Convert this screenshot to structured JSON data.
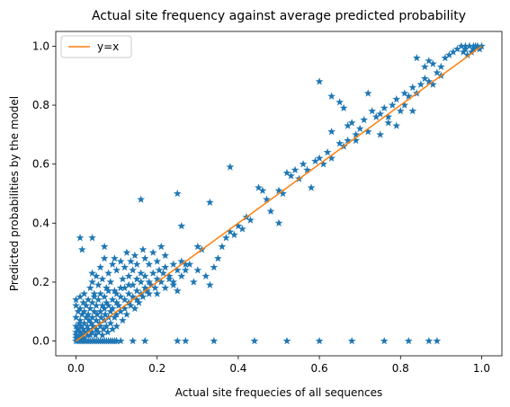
{
  "chart_data": {
    "type": "scatter",
    "title": "Actual site frequency against average predicted probability",
    "xlabel": "Actual site frequecies of all sequences",
    "ylabel": "Predicted probabilities by the model",
    "xlim": [
      -0.05,
      1.05
    ],
    "ylim": [
      -0.05,
      1.05
    ],
    "xticks": [
      0.0,
      0.2,
      0.4,
      0.6,
      0.8,
      1.0
    ],
    "xtick_labels": [
      "0.0",
      "0.2",
      "0.4",
      "0.6",
      "0.8",
      "1.0"
    ],
    "yticks": [
      0.0,
      0.2,
      0.4,
      0.6,
      0.8,
      1.0
    ],
    "ytick_labels": [
      "0.0",
      "0.2",
      "0.4",
      "0.6",
      "0.8",
      "1.0"
    ],
    "grid": false,
    "legend_position": "upper-left",
    "series": [
      {
        "kind": "scatter",
        "marker": "star",
        "color": "#1f77b4",
        "points": [
          [
            0.0,
            0.0
          ],
          [
            0.0,
            0.01
          ],
          [
            0.0,
            0.02
          ],
          [
            0.0,
            0.03
          ],
          [
            0.0,
            0.05
          ],
          [
            0.0,
            0.08
          ],
          [
            0.0,
            0.12
          ],
          [
            0.0,
            0.14
          ],
          [
            0.005,
            0.0
          ],
          [
            0.005,
            0.04
          ],
          [
            0.005,
            0.1
          ],
          [
            0.008,
            0.02
          ],
          [
            0.008,
            0.06
          ],
          [
            0.01,
            0.0
          ],
          [
            0.01,
            0.01
          ],
          [
            0.01,
            0.03
          ],
          [
            0.01,
            0.07
          ],
          [
            0.01,
            0.11
          ],
          [
            0.01,
            0.15
          ],
          [
            0.012,
            0.05
          ],
          [
            0.015,
            0.0
          ],
          [
            0.015,
            0.02
          ],
          [
            0.015,
            0.09
          ],
          [
            0.018,
            0.04
          ],
          [
            0.018,
            0.13
          ],
          [
            0.02,
            0.0
          ],
          [
            0.02,
            0.01
          ],
          [
            0.02,
            0.06
          ],
          [
            0.02,
            0.1
          ],
          [
            0.02,
            0.16
          ],
          [
            0.022,
            0.03
          ],
          [
            0.025,
            0.0
          ],
          [
            0.025,
            0.08
          ],
          [
            0.025,
            0.12
          ],
          [
            0.028,
            0.02
          ],
          [
            0.028,
            0.05
          ],
          [
            0.03,
            0.0
          ],
          [
            0.03,
            0.04
          ],
          [
            0.03,
            0.09
          ],
          [
            0.03,
            0.14
          ],
          [
            0.032,
            0.07
          ],
          [
            0.035,
            0.0
          ],
          [
            0.035,
            0.02
          ],
          [
            0.035,
            0.11
          ],
          [
            0.038,
            0.06
          ],
          [
            0.04,
            0.0
          ],
          [
            0.04,
            0.03
          ],
          [
            0.04,
            0.08
          ],
          [
            0.04,
            0.13
          ],
          [
            0.042,
            0.05
          ],
          [
            0.045,
            0.0
          ],
          [
            0.045,
            0.1
          ],
          [
            0.045,
            0.15
          ],
          [
            0.048,
            0.02
          ],
          [
            0.05,
            0.0
          ],
          [
            0.05,
            0.04
          ],
          [
            0.05,
            0.07
          ],
          [
            0.05,
            0.12
          ],
          [
            0.052,
            0.09
          ],
          [
            0.055,
            0.0
          ],
          [
            0.055,
            0.03
          ],
          [
            0.055,
            0.14
          ],
          [
            0.058,
            0.06
          ],
          [
            0.06,
            0.0
          ],
          [
            0.06,
            0.05
          ],
          [
            0.06,
            0.1
          ],
          [
            0.06,
            0.16
          ],
          [
            0.062,
            0.08
          ],
          [
            0.065,
            0.0
          ],
          [
            0.065,
            0.02
          ],
          [
            0.065,
            0.12
          ],
          [
            0.068,
            0.04
          ],
          [
            0.07,
            0.0
          ],
          [
            0.07,
            0.07
          ],
          [
            0.07,
            0.11
          ],
          [
            0.07,
            0.15
          ],
          [
            0.072,
            0.09
          ],
          [
            0.075,
            0.0
          ],
          [
            0.075,
            0.05
          ],
          [
            0.075,
            0.13
          ],
          [
            0.078,
            0.03
          ],
          [
            0.08,
            0.0
          ],
          [
            0.08,
            0.08
          ],
          [
            0.08,
            0.12
          ],
          [
            0.08,
            0.17
          ],
          [
            0.085,
            0.0
          ],
          [
            0.085,
            0.06
          ],
          [
            0.085,
            0.1
          ],
          [
            0.09,
            0.0
          ],
          [
            0.09,
            0.04
          ],
          [
            0.09,
            0.11
          ],
          [
            0.09,
            0.14
          ],
          [
            0.095,
            0.0
          ],
          [
            0.095,
            0.08
          ],
          [
            0.1,
            0.0
          ],
          [
            0.1,
            0.05
          ],
          [
            0.1,
            0.09
          ],
          [
            0.1,
            0.13
          ],
          [
            0.1,
            0.16
          ],
          [
            0.105,
            0.12
          ],
          [
            0.11,
            0.0
          ],
          [
            0.11,
            0.1
          ],
          [
            0.11,
            0.15
          ],
          [
            0.115,
            0.07
          ],
          [
            0.12,
            0.11
          ],
          [
            0.12,
            0.14
          ],
          [
            0.12,
            0.18
          ],
          [
            0.125,
            0.09
          ],
          [
            0.13,
            0.13
          ],
          [
            0.13,
            0.16
          ],
          [
            0.135,
            0.12
          ],
          [
            0.14,
            0.0
          ],
          [
            0.14,
            0.15
          ],
          [
            0.14,
            0.19
          ],
          [
            0.145,
            0.11
          ],
          [
            0.15,
            0.14
          ],
          [
            0.15,
            0.17
          ],
          [
            0.155,
            0.13
          ],
          [
            0.16,
            0.16
          ],
          [
            0.16,
            0.2
          ],
          [
            0.165,
            0.15
          ],
          [
            0.17,
            0.18
          ],
          [
            0.17,
            0.22
          ],
          [
            0.175,
            0.17
          ],
          [
            0.18,
            0.2
          ],
          [
            0.185,
            0.19
          ],
          [
            0.19,
            0.23
          ],
          [
            0.195,
            0.18
          ],
          [
            0.2,
            0.21
          ],
          [
            0.205,
            0.24
          ],
          [
            0.21,
            0.2
          ],
          [
            0.215,
            0.23
          ],
          [
            0.22,
            0.25
          ],
          [
            0.23,
            0.22
          ],
          [
            0.24,
            0.26
          ],
          [
            0.25,
            0.24
          ],
          [
            0.26,
            0.27
          ],
          [
            0.27,
            0.26
          ],
          [
            0.035,
            0.18
          ],
          [
            0.04,
            0.2
          ],
          [
            0.045,
            0.16
          ],
          [
            0.05,
            0.22
          ],
          [
            0.055,
            0.19
          ],
          [
            0.06,
            0.25
          ],
          [
            0.065,
            0.21
          ],
          [
            0.07,
            0.28
          ],
          [
            0.075,
            0.18
          ],
          [
            0.08,
            0.23
          ],
          [
            0.085,
            0.2
          ],
          [
            0.09,
            0.26
          ],
          [
            0.095,
            0.17
          ],
          [
            0.1,
            0.24
          ],
          [
            0.11,
            0.27
          ],
          [
            0.115,
            0.21
          ],
          [
            0.12,
            0.25
          ],
          [
            0.125,
            0.3
          ],
          [
            0.13,
            0.22
          ],
          [
            0.135,
            0.27
          ],
          [
            0.14,
            0.24
          ],
          [
            0.145,
            0.29
          ],
          [
            0.15,
            0.26
          ],
          [
            0.16,
            0.23
          ],
          [
            0.165,
            0.31
          ],
          [
            0.17,
            0.28
          ],
          [
            0.18,
            0.26
          ],
          [
            0.19,
            0.3
          ],
          [
            0.2,
            0.27
          ],
          [
            0.21,
            0.32
          ],
          [
            0.22,
            0.29
          ],
          [
            0.23,
            0.21
          ],
          [
            0.24,
            0.19
          ],
          [
            0.25,
            0.17
          ],
          [
            0.26,
            0.22
          ],
          [
            0.27,
            0.24
          ],
          [
            0.28,
            0.26
          ],
          [
            0.29,
            0.2
          ],
          [
            0.3,
            0.24
          ],
          [
            0.31,
            0.31
          ],
          [
            0.32,
            0.22
          ],
          [
            0.33,
            0.19
          ],
          [
            0.34,
            0.25
          ],
          [
            0.35,
            0.28
          ],
          [
            0.01,
            0.35
          ],
          [
            0.04,
            0.23
          ],
          [
            0.07,
            0.32
          ],
          [
            0.11,
            0.18
          ],
          [
            0.13,
            0.19
          ],
          [
            0.15,
            0.21
          ],
          [
            0.18,
            0.16
          ],
          [
            0.2,
            0.16
          ],
          [
            0.22,
            0.18
          ],
          [
            0.24,
            0.2
          ],
          [
            0.015,
            0.31
          ],
          [
            0.04,
            0.35
          ],
          [
            0.095,
            0.28
          ],
          [
            0.16,
            0.48
          ],
          [
            0.25,
            0.5
          ],
          [
            0.33,
            0.47
          ],
          [
            0.26,
            0.39
          ],
          [
            0.3,
            0.32
          ],
          [
            0.36,
            0.32
          ],
          [
            0.37,
            0.35
          ],
          [
            0.38,
            0.37
          ],
          [
            0.39,
            0.36
          ],
          [
            0.4,
            0.39
          ],
          [
            0.41,
            0.38
          ],
          [
            0.42,
            0.42
          ],
          [
            0.43,
            0.41
          ],
          [
            0.45,
            0.52
          ],
          [
            0.46,
            0.51
          ],
          [
            0.47,
            0.48
          ],
          [
            0.48,
            0.44
          ],
          [
            0.5,
            0.51
          ],
          [
            0.51,
            0.5
          ],
          [
            0.5,
            0.4
          ],
          [
            0.52,
            0.57
          ],
          [
            0.53,
            0.56
          ],
          [
            0.54,
            0.58
          ],
          [
            0.55,
            0.55
          ],
          [
            0.56,
            0.6
          ],
          [
            0.57,
            0.58
          ],
          [
            0.58,
            0.52
          ],
          [
            0.59,
            0.61
          ],
          [
            0.6,
            0.62
          ],
          [
            0.61,
            0.6
          ],
          [
            0.62,
            0.64
          ],
          [
            0.63,
            0.62
          ],
          [
            0.65,
            0.67
          ],
          [
            0.66,
            0.66
          ],
          [
            0.67,
            0.68
          ],
          [
            0.68,
            0.74
          ],
          [
            0.69,
            0.7
          ],
          [
            0.7,
            0.72
          ],
          [
            0.71,
            0.75
          ],
          [
            0.72,
            0.71
          ],
          [
            0.73,
            0.78
          ],
          [
            0.74,
            0.76
          ],
          [
            0.75,
            0.77
          ],
          [
            0.76,
            0.79
          ],
          [
            0.77,
            0.74
          ],
          [
            0.78,
            0.8
          ],
          [
            0.79,
            0.82
          ],
          [
            0.8,
            0.78
          ],
          [
            0.81,
            0.84
          ],
          [
            0.82,
            0.83
          ],
          [
            0.83,
            0.86
          ],
          [
            0.84,
            0.84
          ],
          [
            0.85,
            0.87
          ],
          [
            0.86,
            0.89
          ],
          [
            0.87,
            0.88
          ],
          [
            0.88,
            0.87
          ],
          [
            0.89,
            0.91
          ],
          [
            0.9,
            0.9
          ],
          [
            0.38,
            0.59
          ],
          [
            0.6,
            0.88
          ],
          [
            0.63,
            0.83
          ],
          [
            0.65,
            0.81
          ],
          [
            0.66,
            0.79
          ],
          [
            0.67,
            0.73
          ],
          [
            0.69,
            0.68
          ],
          [
            0.72,
            0.84
          ],
          [
            0.63,
            0.71
          ],
          [
            0.75,
            0.7
          ],
          [
            0.77,
            0.76
          ],
          [
            0.79,
            0.73
          ],
          [
            0.81,
            0.8
          ],
          [
            0.83,
            0.78
          ],
          [
            0.84,
            0.96
          ],
          [
            0.86,
            0.93
          ],
          [
            0.87,
            0.95
          ],
          [
            0.88,
            0.94
          ],
          [
            0.9,
            0.93
          ],
          [
            0.91,
            0.96
          ],
          [
            0.92,
            0.97
          ],
          [
            0.93,
            0.98
          ],
          [
            0.94,
            0.99
          ],
          [
            0.95,
            1.0
          ],
          [
            0.96,
            0.99
          ],
          [
            0.97,
            1.0
          ],
          [
            0.98,
            0.99
          ],
          [
            0.99,
            1.0
          ],
          [
            1.0,
            1.0
          ],
          [
            0.955,
            0.98
          ],
          [
            0.965,
            0.97
          ],
          [
            0.975,
            0.98
          ],
          [
            0.985,
            1.0
          ],
          [
            0.995,
            0.99
          ],
          [
            0.96,
            1.0
          ],
          [
            0.98,
            1.0
          ],
          [
            0.1,
            0.0
          ],
          [
            0.17,
            0.0
          ],
          [
            0.25,
            0.0
          ],
          [
            0.27,
            0.0
          ],
          [
            0.34,
            0.0
          ],
          [
            0.44,
            0.0
          ],
          [
            0.52,
            0.0
          ],
          [
            0.6,
            0.0
          ],
          [
            0.68,
            0.0
          ],
          [
            0.76,
            0.0
          ],
          [
            0.82,
            0.0
          ],
          [
            0.87,
            0.0
          ],
          [
            0.89,
            0.0
          ]
        ]
      },
      {
        "kind": "line",
        "name": "y=x",
        "color": "#ff7f0e",
        "x": [
          0.0,
          1.0
        ],
        "y": [
          0.0,
          1.0
        ]
      }
    ]
  }
}
